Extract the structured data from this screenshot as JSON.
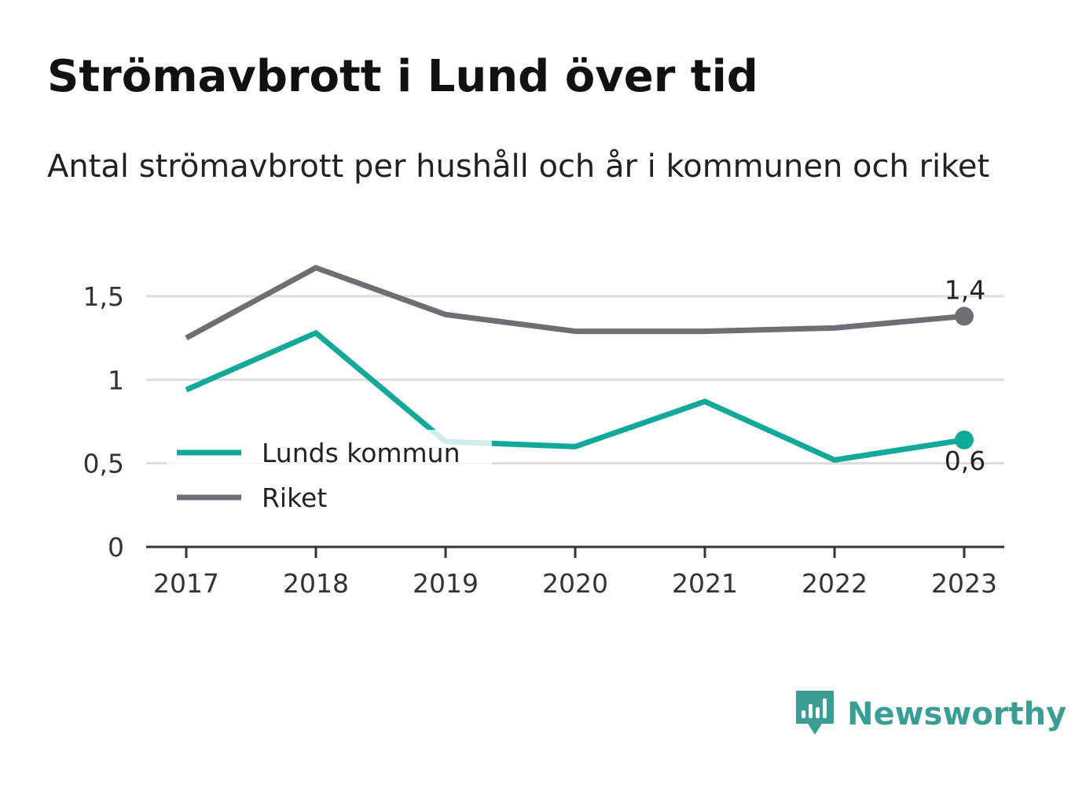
{
  "title": "Strömavbrott i Lund över tid",
  "subtitle": "Antal strömavbrott per hushåll och år i kommunen och riket",
  "brand": {
    "name": "Newsworthy",
    "icon": "newsworthy-logo-icon",
    "color": "#3a9e94"
  },
  "chart_data": {
    "type": "line",
    "title": "Strömavbrott i Lund över tid",
    "subtitle": "Antal strömavbrott per hushåll och år i kommunen och riket",
    "xlabel": "",
    "ylabel": "",
    "x": [
      "2017",
      "2018",
      "2019",
      "2020",
      "2021",
      "2022",
      "2023"
    ],
    "ylim": [
      0,
      1.65
    ],
    "yticks": [
      0,
      0.5,
      1,
      1.5
    ],
    "ytick_labels": [
      "0",
      "0,5",
      "1",
      "1,5"
    ],
    "grid": true,
    "legend": "bottom-left",
    "series": [
      {
        "name": "Lunds kommun",
        "color": "#12a89a",
        "values": [
          0.94,
          1.28,
          0.63,
          0.6,
          0.87,
          0.52,
          0.64
        ],
        "end_label": "0,6"
      },
      {
        "name": "Riket",
        "color": "#6f6e75",
        "values": [
          1.25,
          1.67,
          1.39,
          1.29,
          1.29,
          1.31,
          1.38
        ],
        "end_label": "1,4"
      }
    ]
  }
}
